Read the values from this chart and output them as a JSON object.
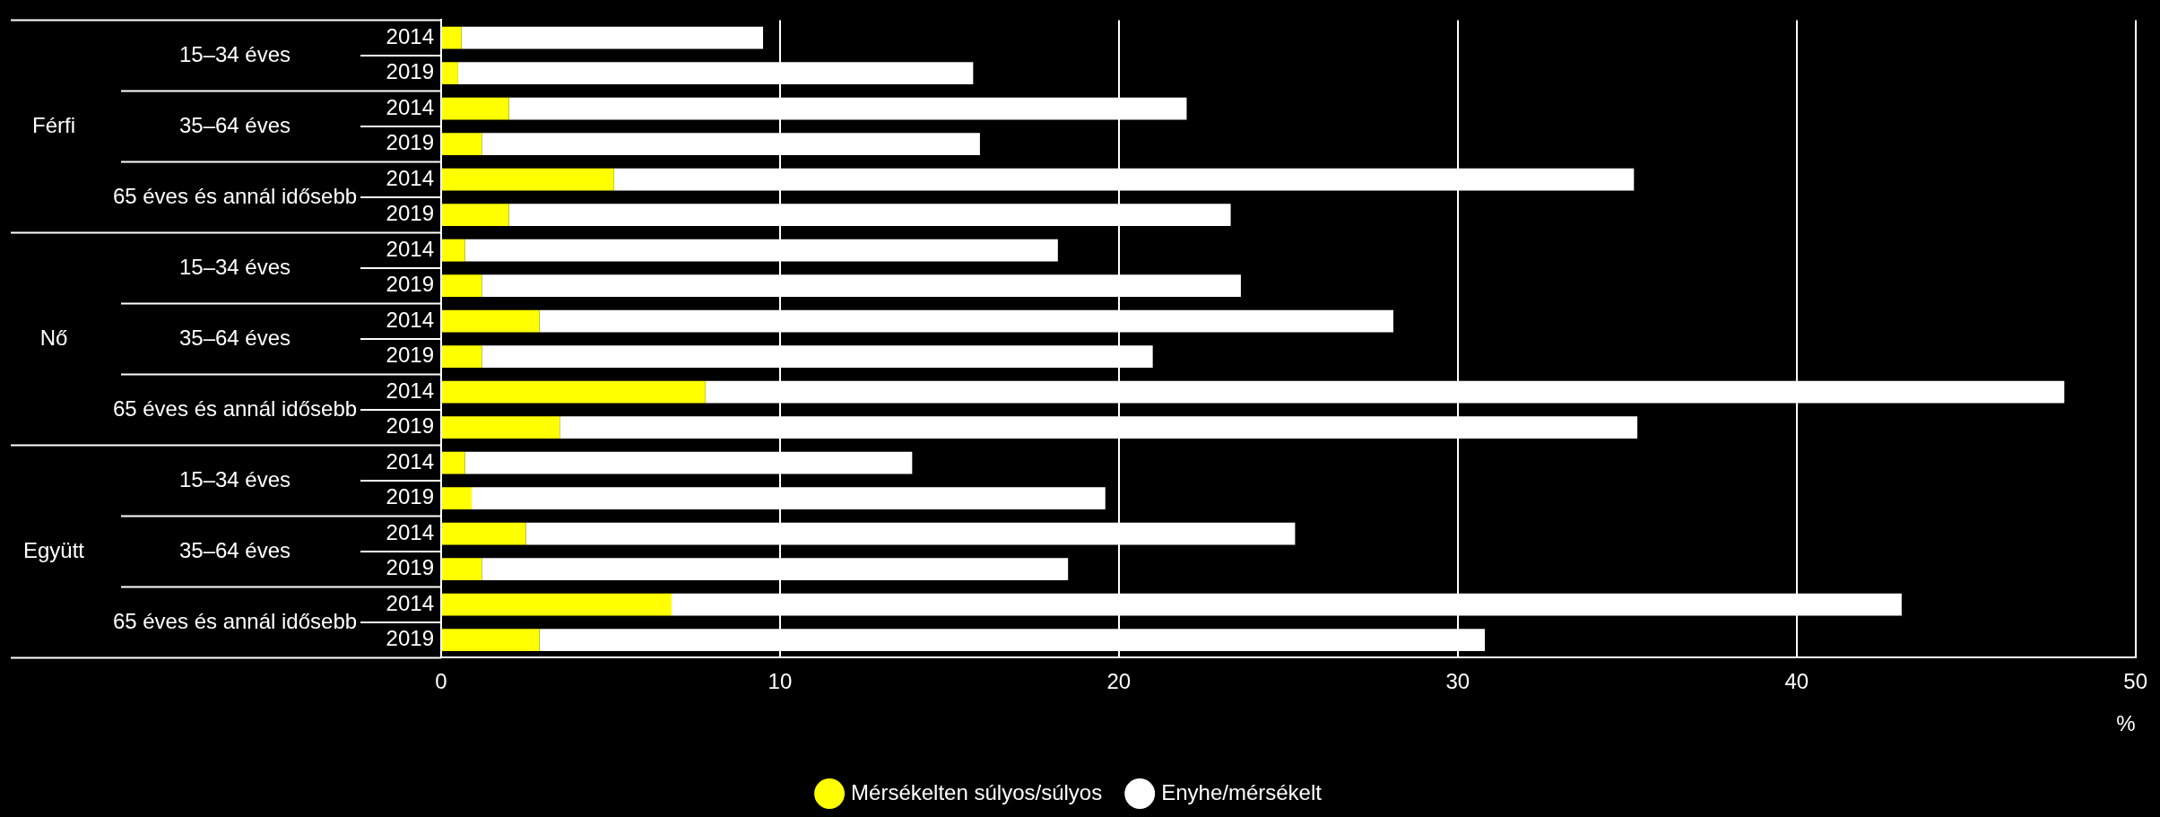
{
  "chart_data": {
    "type": "bar",
    "orientation": "horizontal",
    "stacked": true,
    "categories": [
      "2014",
      "2019",
      "2014",
      "2019",
      "2014",
      "2019",
      "2014",
      "2019",
      "2014",
      "2019",
      "2014",
      "2019",
      "2014",
      "2019",
      "2014",
      "2019",
      "2014",
      "2019"
    ],
    "series": [
      {
        "name": "Mérsékelten súlyos/súlyos",
        "color": "#ffff00",
        "values": [
          0.6,
          0.5,
          2.0,
          1.2,
          5.1,
          2.0,
          0.7,
          1.2,
          2.9,
          1.2,
          7.8,
          3.5,
          0.7,
          0.9,
          2.5,
          1.2,
          6.8,
          2.9
        ]
      },
      {
        "name": "Enyhe/mérsékelt",
        "color": "#ffffff",
        "values": [
          8.9,
          15.2,
          20.0,
          14.7,
          30.1,
          21.3,
          17.5,
          22.4,
          25.2,
          19.8,
          40.1,
          31.8,
          13.2,
          18.7,
          22.7,
          17.3,
          36.3,
          27.9
        ]
      }
    ],
    "xlabel": "%",
    "xlim": [
      0,
      50
    ],
    "xticks": [
      0,
      10,
      20,
      30,
      40,
      50
    ],
    "grid": "x",
    "legend": "bottom",
    "annotations": [
      "Férfi",
      "15–34 éves",
      "35–64 éves",
      "65 éves és annál idősebb",
      "Nő",
      "15–34 éves",
      "35–64 éves",
      "65 éves és annál idősebb",
      "Együtt",
      "15–34 éves",
      "35–64 éves",
      "65 éves és annál idősebb"
    ]
  }
}
